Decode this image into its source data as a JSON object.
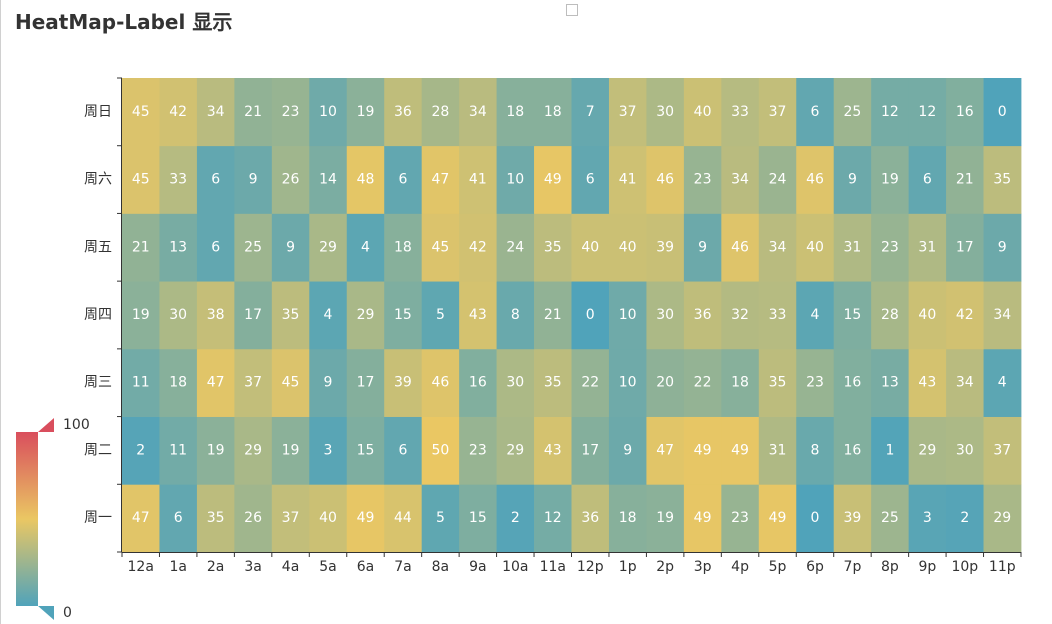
{
  "title": "HeatMap-Label 显示",
  "chart_data": {
    "type": "heatmap",
    "title": "HeatMap-Label 显示",
    "x_categories": [
      "12a",
      "1a",
      "2a",
      "3a",
      "4a",
      "5a",
      "6a",
      "7a",
      "8a",
      "9a",
      "10a",
      "11a",
      "12p",
      "1p",
      "2p",
      "3p",
      "4p",
      "5p",
      "6p",
      "7p",
      "8p",
      "9p",
      "10p",
      "11p"
    ],
    "y_categories": [
      "周一",
      "周二",
      "周三",
      "周四",
      "周五",
      "周六",
      "周日"
    ],
    "values": [
      [
        47,
        6,
        35,
        26,
        37,
        40,
        49,
        44,
        5,
        15,
        2,
        12,
        36,
        18,
        19,
        49,
        23,
        49,
        0,
        39,
        25,
        3,
        2,
        29
      ],
      [
        2,
        11,
        19,
        29,
        19,
        3,
        15,
        6,
        50,
        23,
        29,
        43,
        17,
        9,
        47,
        49,
        49,
        31,
        8,
        16,
        1,
        29,
        30,
        37
      ],
      [
        11,
        18,
        47,
        37,
        45,
        9,
        17,
        39,
        46,
        16,
        30,
        35,
        22,
        10,
        20,
        22,
        18,
        35,
        23,
        16,
        13,
        43,
        34,
        4
      ],
      [
        19,
        30,
        38,
        17,
        35,
        4,
        29,
        15,
        5,
        43,
        8,
        21,
        0,
        10,
        30,
        36,
        32,
        33,
        4,
        15,
        28,
        40,
        42,
        34
      ],
      [
        21,
        13,
        6,
        25,
        9,
        29,
        4,
        18,
        45,
        42,
        24,
        35,
        40,
        40,
        39,
        9,
        46,
        34,
        40,
        31,
        23,
        31,
        17,
        9
      ],
      [
        45,
        33,
        6,
        9,
        26,
        14,
        48,
        6,
        47,
        41,
        10,
        49,
        6,
        41,
        46,
        23,
        34,
        24,
        46,
        9,
        19,
        6,
        21,
        35
      ],
      [
        45,
        42,
        34,
        21,
        23,
        10,
        19,
        36,
        28,
        34,
        18,
        18,
        7,
        37,
        30,
        40,
        33,
        37,
        6,
        25,
        12,
        12,
        16,
        0
      ]
    ],
    "visual_map": {
      "min": 0,
      "max": 100,
      "min_label": "0",
      "max_label": "100",
      "colors": [
        "#50a3ba",
        "#eac763",
        "#d94e5d"
      ]
    },
    "label_color": "#ffffff",
    "axis_color": "#333333"
  }
}
